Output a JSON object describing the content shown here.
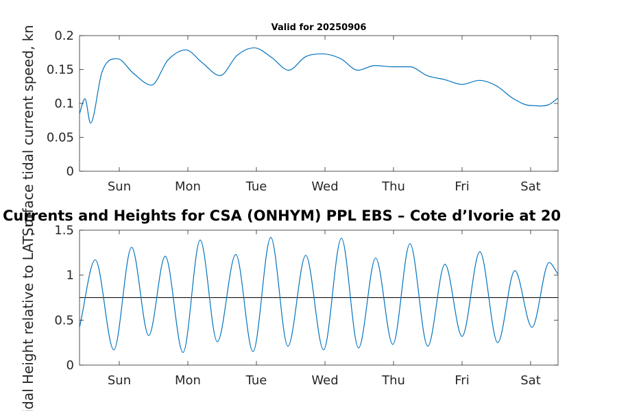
{
  "chart_data": [
    {
      "type": "line",
      "title": "Valid for 20250906",
      "ylabel": "Surface tidal current speed, kn",
      "xlabel": "",
      "ylim": [
        0,
        0.2
      ],
      "yticks": [
        "0",
        "0.05",
        "0.1",
        "0.15",
        "0.2"
      ],
      "xtick_labels": [
        "Sun",
        "Mon",
        "Tue",
        "Wed",
        "Thu",
        "Fri",
        "Sat"
      ],
      "grid": false,
      "line_color": "#0072BD",
      "series": [
        {
          "x_days": [
            0,
            0.08,
            0.16,
            0.33,
            0.55,
            0.79,
            1.05,
            1.29,
            1.55,
            1.79,
            2.05,
            2.3,
            2.55,
            2.8,
            3.05,
            3.3,
            3.55,
            3.81,
            4.06,
            4.31,
            4.56,
            4.82,
            5.07,
            5.33,
            5.58,
            5.83,
            6.08,
            6.33,
            6.58,
            6.84,
            6.98
          ],
          "values": [
            0.085,
            0.107,
            0.071,
            0.147,
            0.166,
            0.144,
            0.127,
            0.164,
            0.179,
            0.16,
            0.141,
            0.171,
            0.182,
            0.168,
            0.149,
            0.169,
            0.173,
            0.166,
            0.149,
            0.156,
            0.154,
            0.154,
            0.141,
            0.135,
            0.128,
            0.134,
            0.126,
            0.107,
            0.097,
            0.098,
            0.108
          ],
          "note": ""
        }
      ]
    },
    {
      "type": "line",
      "title": "Currents and Heights for CSA (ONHYM) PPL EBS  – Cote d’Ivorie at 20",
      "ylabel": "Tidal Height relative to LAT, m",
      "xlabel": "",
      "ylim": [
        0,
        1.5
      ],
      "yticks": [
        "0",
        "0.5",
        "1",
        "1.5"
      ],
      "xtick_labels": [
        "Sun",
        "Mon",
        "Tue",
        "Wed",
        "Thu",
        "Fri",
        "Sat"
      ],
      "grid": false,
      "line_color": "#0072BD",
      "reference_line": 0.75,
      "series": [
        {
          "x_days": [
            0,
            0.23,
            0.5,
            0.76,
            1.01,
            1.25,
            1.51,
            1.76,
            2.01,
            2.28,
            2.53,
            2.79,
            3.04,
            3.3,
            3.56,
            3.82,
            4.07,
            4.32,
            4.57,
            4.82,
            5.08,
            5.33,
            5.58,
            5.84,
            6.1,
            6.35,
            6.6,
            6.85,
            6.98
          ],
          "values": [
            0.42,
            1.17,
            0.17,
            1.31,
            0.33,
            1.21,
            0.14,
            1.39,
            0.26,
            1.23,
            0.15,
            1.42,
            0.21,
            1.22,
            0.17,
            1.41,
            0.19,
            1.19,
            0.23,
            1.35,
            0.21,
            1.12,
            0.32,
            1.26,
            0.25,
            1.05,
            0.42,
            1.14,
            1.01
          ]
        }
      ]
    }
  ]
}
